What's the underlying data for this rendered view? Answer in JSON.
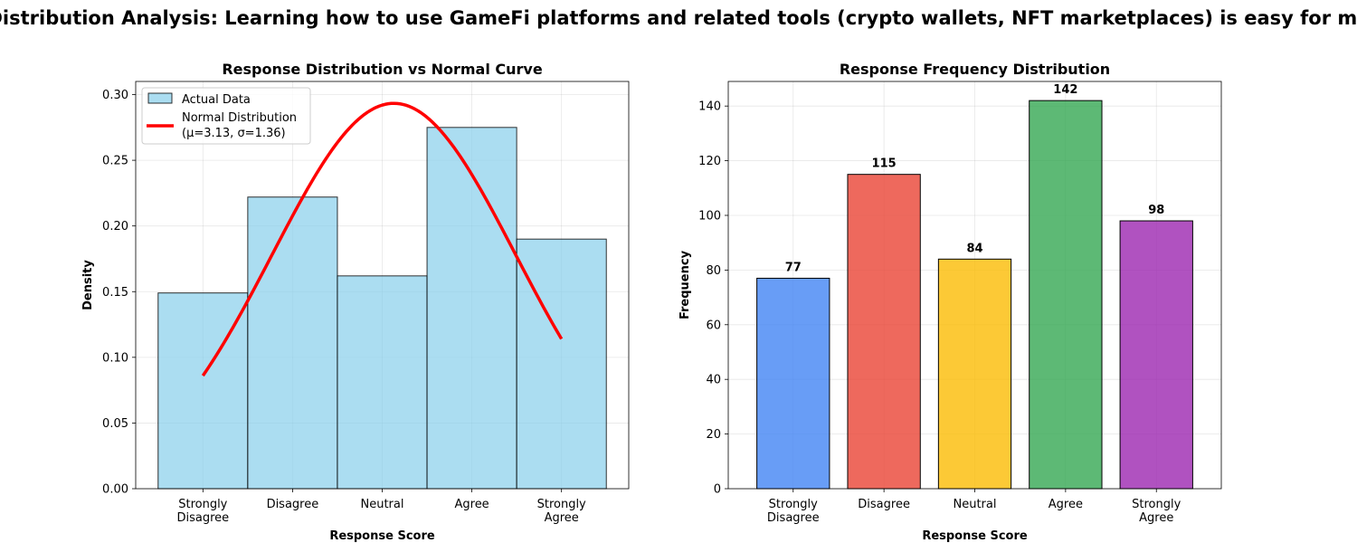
{
  "figure": {
    "suptitle": "Distribution Analysis: Learning how to use GameFi platforms and related tools (crypto wallets, NFT marketplaces) is easy for me"
  },
  "chart_data": [
    {
      "type": "bar",
      "subtype": "histogram_with_normal_curve",
      "title": "Response Distribution vs Normal Curve",
      "xlabel": "Response Score",
      "ylabel": "Density",
      "categories": [
        "Strongly Disagree",
        "Disagree",
        "Neutral",
        "Agree",
        "Strongly Agree"
      ],
      "x": [
        1,
        2,
        3,
        4,
        5
      ],
      "xlim": [
        0.25,
        5.75
      ],
      "ylim": [
        0,
        0.31
      ],
      "yticks": [
        "0.00",
        "0.05",
        "0.10",
        "0.15",
        "0.20",
        "0.25",
        "0.30"
      ],
      "series": [
        {
          "name": "Actual Data",
          "kind": "histogram",
          "values": [
            0.149,
            0.222,
            0.162,
            0.275,
            0.19
          ],
          "color": "#87CEEB"
        },
        {
          "name": "Normal Distribution\n(μ=3.13, σ=1.36)",
          "kind": "line",
          "mu": 3.13,
          "sigma": 1.36,
          "x_range": [
            1,
            5
          ],
          "color": "#ff0000"
        }
      ],
      "legend": "upper-left",
      "grid": true
    },
    {
      "type": "bar",
      "title": "Response Frequency Distribution",
      "xlabel": "Response Score",
      "ylabel": "Frequency",
      "categories": [
        "Strongly Disagree",
        "Disagree",
        "Neutral",
        "Agree",
        "Strongly Agree"
      ],
      "values": [
        77,
        115,
        84,
        142,
        98
      ],
      "colors": [
        "#4285f4",
        "#ea4335",
        "#fbbc04",
        "#34a853",
        "#9c27b0"
      ],
      "ylim": [
        0,
        149
      ],
      "yticks": [
        "0",
        "20",
        "40",
        "60",
        "80",
        "100",
        "120",
        "140"
      ],
      "grid": true
    }
  ]
}
